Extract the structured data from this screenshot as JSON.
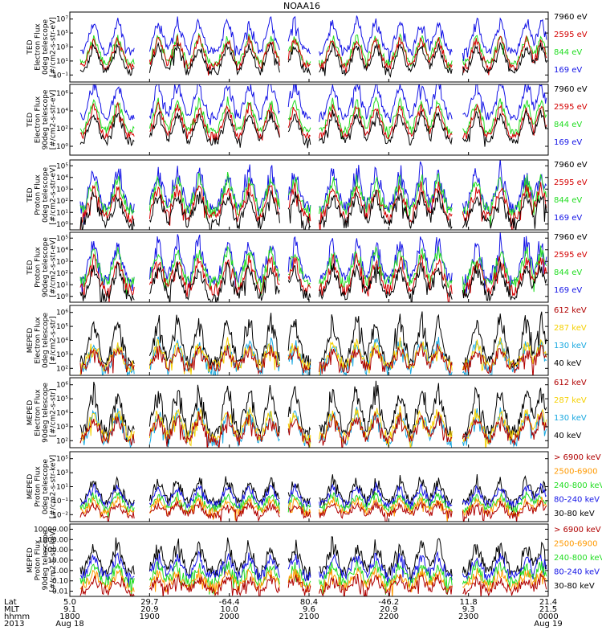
{
  "title": "NOAA16",
  "colors": {
    "black": "#000000",
    "red": "#d40000",
    "green": "#22dd22",
    "blue": "#1414e6",
    "yellow": "#f5d000",
    "orange": "#ff9900",
    "cyan": "#18a8e0",
    "darkred": "#b00000"
  },
  "chart_data": [
    {
      "type": "line",
      "ylabel": [
        "TED",
        "Electron Flux",
        "0deg telescope",
        "[#/cm2-s-str-eV]"
      ],
      "y_tick_labels": [
        "10⁻¹",
        "10¹",
        "10³",
        "10⁵",
        "10⁷"
      ],
      "ylim_exp": [
        -1,
        7
      ],
      "series": [
        {
          "name": "7960 eV",
          "color": "black",
          "base": 0.2,
          "burst": 3.0
        },
        {
          "name": "2595 eV",
          "color": "red",
          "base": 0.8,
          "burst": 3.2
        },
        {
          "name": "844 eV",
          "color": "green",
          "base": 1.2,
          "burst": 3.0
        },
        {
          "name": "169 eV",
          "color": "blue",
          "base": 2.5,
          "burst": 3.5
        }
      ]
    },
    {
      "type": "line",
      "ylabel": [
        "TED",
        "Electron Flux",
        "90deg telescope",
        "[#/cm2-s-str-eV]"
      ],
      "y_tick_labels": [
        "10⁰",
        "10²",
        "10⁴",
        "10⁶"
      ],
      "ylim_exp": [
        -1,
        7
      ],
      "series": [
        {
          "name": "7960 eV",
          "color": "black",
          "base": 0.6,
          "burst": 3.2
        },
        {
          "name": "2595 eV",
          "color": "red",
          "base": 1.2,
          "burst": 3.4
        },
        {
          "name": "844 eV",
          "color": "green",
          "base": 1.8,
          "burst": 3.4
        },
        {
          "name": "169 eV",
          "color": "blue",
          "base": 3.4,
          "burst": 3.8
        }
      ]
    },
    {
      "type": "line",
      "ylabel": [
        "TED",
        "Proton Flux",
        "0deg telescope",
        "[#/cm2-s-str-eV]"
      ],
      "y_tick_labels": [
        "10⁰",
        "10¹",
        "10²",
        "10³",
        "10⁴",
        "10⁵"
      ],
      "ylim_exp": [
        0,
        5
      ],
      "series": [
        {
          "name": "7960 eV",
          "color": "black",
          "base": 0.5,
          "burst": 2.0
        },
        {
          "name": "2595 eV",
          "color": "red",
          "base": 0.9,
          "burst": 2.2
        },
        {
          "name": "844 eV",
          "color": "green",
          "base": 1.4,
          "burst": 2.3
        },
        {
          "name": "169 eV",
          "color": "blue",
          "base": 1.6,
          "burst": 2.6
        }
      ]
    },
    {
      "type": "line",
      "ylabel": [
        "TED",
        "Proton Flux",
        "90deg telescope",
        "[#/cm2-s-str-eV]"
      ],
      "y_tick_labels": [
        "10⁰",
        "10¹",
        "10²",
        "10³",
        "10⁴",
        "10⁵"
      ],
      "ylim_exp": [
        0,
        5
      ],
      "series": [
        {
          "name": "7960 eV",
          "color": "black",
          "base": 0.5,
          "burst": 2.0
        },
        {
          "name": "2595 eV",
          "color": "red",
          "base": 0.9,
          "burst": 2.2
        },
        {
          "name": "844 eV",
          "color": "green",
          "base": 1.4,
          "burst": 2.3
        },
        {
          "name": "169 eV",
          "color": "blue",
          "base": 1.7,
          "burst": 2.6
        }
      ]
    },
    {
      "type": "line",
      "ylabel": [
        "MEPED",
        "Electron Flux",
        "0deg telescope",
        "[#/cm2-s-str]"
      ],
      "y_tick_labels": [
        "10²",
        "10³",
        "10⁴",
        "10⁵",
        "10⁶"
      ],
      "ylim_exp": [
        2,
        7
      ],
      "series": [
        {
          "name": "612 keV",
          "color": "darkred",
          "base": 2.5,
          "burst": 1.4
        },
        {
          "name": "287 keV",
          "color": "yellow",
          "base": 2.7,
          "burst": 1.6
        },
        {
          "name": "130 keV",
          "color": "cyan",
          "base": 2.4,
          "burst": 2.0
        },
        {
          "name": "40 keV",
          "color": "black",
          "base": 3.0,
          "burst": 3.0
        }
      ]
    },
    {
      "type": "line",
      "ylabel": [
        "MEPED",
        "Electron Flux",
        "90deg telescope",
        "[#/cm2-s-str]"
      ],
      "y_tick_labels": [
        "10²",
        "10³",
        "10⁴",
        "10⁵",
        "10⁶"
      ],
      "ylim_exp": [
        2,
        7
      ],
      "series": [
        {
          "name": "612 keV",
          "color": "darkred",
          "base": 2.6,
          "burst": 1.6
        },
        {
          "name": "287 keV",
          "color": "yellow",
          "base": 2.8,
          "burst": 1.8
        },
        {
          "name": "130 keV",
          "color": "cyan",
          "base": 2.5,
          "burst": 2.0
        },
        {
          "name": "40 keV",
          "color": "black",
          "base": 3.2,
          "burst": 3.0
        }
      ]
    },
    {
      "type": "line",
      "ylabel": [
        "MEPED",
        "Proton Flux",
        "0deg telescope",
        "[#/cm2-s-str-keV]"
      ],
      "y_tick_labels": [
        "10⁻²",
        "10⁻¹",
        "10¹",
        "10³",
        "10⁵"
      ],
      "ylim_exp": [
        -2,
        6
      ],
      "series": [
        {
          "name": "> 6900 keV",
          "color": "darkred",
          "base": -1.2,
          "burst": 1.2
        },
        {
          "name": "2500-6900",
          "color": "orange",
          "base": -0.9,
          "burst": 1.4
        },
        {
          "name": "240-800 keV",
          "color": "green",
          "base": -0.5,
          "burst": 1.6
        },
        {
          "name": "80-240 keV",
          "color": "blue",
          "base": 0.0,
          "burst": 2.0
        },
        {
          "name": "30-80 keV",
          "color": "black",
          "base": 0.3,
          "burst": 2.4
        }
      ]
    },
    {
      "type": "line",
      "ylabel": [
        "MEPED",
        "Proton Flux",
        "90deg telescope",
        "[#/cm2-s-str-keV]"
      ],
      "y_tick_labels": [
        "0.01",
        "0.10",
        "1.00",
        "10.00",
        "100.00",
        "1000.00",
        "10000.00"
      ],
      "ylim_exp": [
        -2,
        4
      ],
      "series": [
        {
          "name": "> 6900 keV",
          "color": "darkred",
          "base": -1.5,
          "burst": 1.0
        },
        {
          "name": "2500-6900",
          "color": "orange",
          "base": -1.2,
          "burst": 1.2
        },
        {
          "name": "240-800 keV",
          "color": "green",
          "base": -0.8,
          "burst": 1.4
        },
        {
          "name": "80-240 keV",
          "color": "blue",
          "base": -0.3,
          "burst": 1.6
        },
        {
          "name": "30-80 keV",
          "color": "black",
          "base": 0.1,
          "burst": 2.2
        }
      ]
    }
  ],
  "footer": {
    "row_labels": [
      "Lat",
      "MLT",
      "hhmm",
      "2013"
    ],
    "columns": [
      {
        "lat": "5.0",
        "mlt": "9.1",
        "hhmm": "1800",
        "date": "Aug 18"
      },
      {
        "lat": "29.7",
        "mlt": "20.9",
        "hhmm": "1900",
        "date": ""
      },
      {
        "lat": "-64.4",
        "mlt": "10.0",
        "hhmm": "2000",
        "date": ""
      },
      {
        "lat": "80.4",
        "mlt": "9.6",
        "hhmm": "2100",
        "date": ""
      },
      {
        "lat": "-46.2",
        "mlt": "20.9",
        "hhmm": "2200",
        "date": ""
      },
      {
        "lat": "11.8",
        "mlt": "9.3",
        "hhmm": "2300",
        "date": ""
      },
      {
        "lat": "21.4",
        "mlt": "21.5",
        "hhmm": "0000",
        "date": "Aug 19"
      }
    ]
  }
}
